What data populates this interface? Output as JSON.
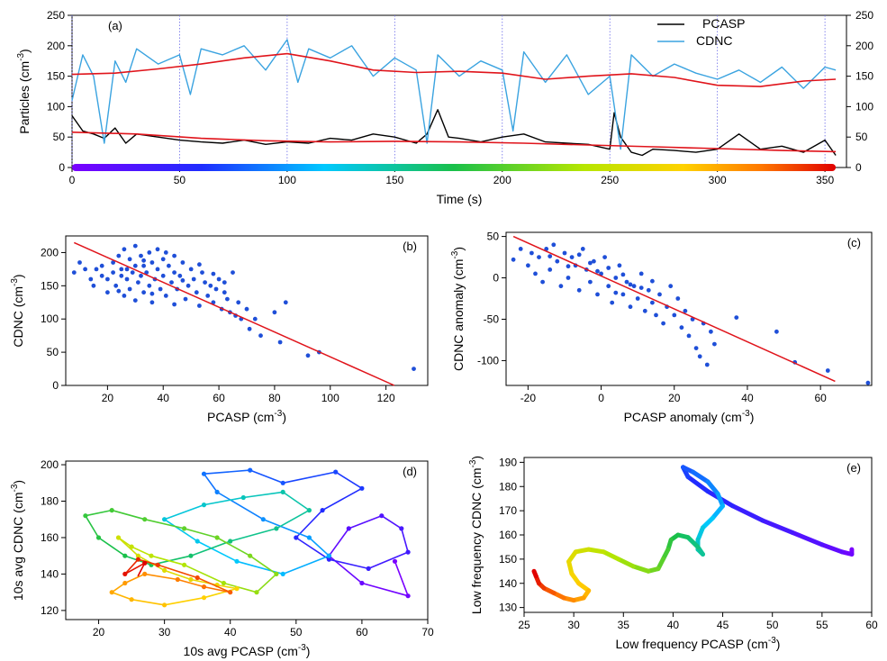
{
  "colors": {
    "pcasp": "#000000",
    "cdnc": "#3aa3e0",
    "smooth": "#e0141b",
    "scatter_points": "#1f4fd8",
    "fit_line": "#e0141b",
    "vline": "#6a6ae8"
  },
  "chart_data": [
    {
      "id": "a",
      "type": "line",
      "tag": "(a)",
      "xlabel": "Time (s)",
      "ylabel": "Particles (cm⁻³)",
      "xlim": [
        0,
        360
      ],
      "ylim": [
        0,
        250
      ],
      "xticks": [
        0,
        50,
        100,
        150,
        200,
        250,
        300,
        350
      ],
      "yticks": [
        0,
        50,
        100,
        150,
        200,
        250
      ],
      "right_axis_ticks": [
        0,
        50,
        100,
        150,
        200,
        250
      ],
      "vertical_gridlines_x": [
        0,
        50,
        100,
        150,
        200,
        250,
        300,
        350
      ],
      "color_bar": "rainbow time bar from violet at 0 s to red at 355 s along y=0",
      "legend": {
        "position": "top-right",
        "entries": [
          "PCASP",
          "CDNC"
        ]
      },
      "series": [
        {
          "name": "PCASP",
          "x": [
            0,
            5,
            10,
            15,
            20,
            25,
            30,
            40,
            50,
            60,
            70,
            80,
            90,
            100,
            110,
            120,
            130,
            140,
            150,
            160,
            165,
            170,
            175,
            180,
            190,
            200,
            210,
            220,
            230,
            240,
            250,
            252,
            255,
            260,
            265,
            270,
            280,
            290,
            300,
            310,
            320,
            330,
            340,
            350,
            355
          ],
          "values": [
            85,
            60,
            55,
            48,
            65,
            40,
            55,
            50,
            45,
            42,
            40,
            45,
            38,
            42,
            40,
            48,
            45,
            55,
            50,
            40,
            55,
            95,
            50,
            48,
            42,
            50,
            55,
            42,
            40,
            38,
            30,
            90,
            50,
            25,
            20,
            30,
            28,
            25,
            30,
            55,
            30,
            35,
            25,
            45,
            20
          ]
        },
        {
          "name": "CDNC",
          "x": [
            0,
            5,
            10,
            15,
            20,
            25,
            30,
            40,
            50,
            55,
            60,
            70,
            80,
            90,
            100,
            105,
            110,
            120,
            130,
            140,
            150,
            160,
            165,
            170,
            180,
            190,
            200,
            205,
            210,
            220,
            230,
            240,
            250,
            255,
            260,
            270,
            280,
            290,
            300,
            310,
            320,
            330,
            340,
            350,
            355
          ],
          "values": [
            110,
            185,
            150,
            40,
            175,
            140,
            195,
            170,
            185,
            120,
            195,
            185,
            200,
            160,
            210,
            140,
            195,
            180,
            200,
            150,
            180,
            160,
            40,
            185,
            150,
            175,
            160,
            60,
            190,
            140,
            185,
            120,
            150,
            30,
            185,
            150,
            170,
            155,
            145,
            160,
            140,
            165,
            130,
            165,
            160
          ]
        },
        {
          "name": "PCASP low frequency",
          "x": [
            0,
            30,
            60,
            90,
            120,
            150,
            180,
            210,
            240,
            270,
            300,
            330,
            355
          ],
          "values": [
            58,
            55,
            48,
            44,
            42,
            43,
            42,
            40,
            37,
            34,
            31,
            28,
            26
          ]
        },
        {
          "name": "CDNC low frequency",
          "x": [
            0,
            20,
            40,
            60,
            80,
            100,
            120,
            140,
            160,
            180,
            200,
            220,
            240,
            260,
            280,
            300,
            320,
            340,
            355
          ],
          "values": [
            153,
            155,
            162,
            170,
            180,
            187,
            175,
            160,
            156,
            158,
            155,
            145,
            150,
            154,
            148,
            135,
            133,
            142,
            145
          ]
        }
      ]
    },
    {
      "id": "b",
      "type": "scatter",
      "tag": "(b)",
      "xlabel": "PCASP (cm⁻³)",
      "ylabel": "CDNC (cm⁻³)",
      "xlim": [
        5,
        135
      ],
      "ylim": [
        0,
        225
      ],
      "xticks": [
        20,
        40,
        60,
        80,
        100,
        120
      ],
      "yticks": [
        0,
        50,
        100,
        150,
        200
      ],
      "fit_line": {
        "x": [
          8,
          123
        ],
        "y": [
          215,
          0
        ]
      },
      "points": [
        [
          8,
          170
        ],
        [
          10,
          185
        ],
        [
          12,
          175
        ],
        [
          14,
          160
        ],
        [
          15,
          150
        ],
        [
          16,
          175
        ],
        [
          18,
          165
        ],
        [
          18,
          180
        ],
        [
          20,
          160
        ],
        [
          20,
          140
        ],
        [
          22,
          170
        ],
        [
          22,
          185
        ],
        [
          23,
          150
        ],
        [
          24,
          195
        ],
        [
          25,
          165
        ],
        [
          25,
          175
        ],
        [
          26,
          135
        ],
        [
          26,
          205
        ],
        [
          27,
          160
        ],
        [
          28,
          190
        ],
        [
          28,
          145
        ],
        [
          29,
          170
        ],
        [
          30,
          180
        ],
        [
          30,
          210
        ],
        [
          31,
          155
        ],
        [
          32,
          165
        ],
        [
          32,
          195
        ],
        [
          33,
          140
        ],
        [
          33,
          180
        ],
        [
          34,
          170
        ],
        [
          35,
          200
        ],
        [
          35,
          150
        ],
        [
          36,
          185
        ],
        [
          36,
          125
        ],
        [
          37,
          160
        ],
        [
          38,
          175
        ],
        [
          38,
          205
        ],
        [
          39,
          145
        ],
        [
          40,
          190
        ],
        [
          40,
          165
        ],
        [
          41,
          135
        ],
        [
          42,
          180
        ],
        [
          43,
          155
        ],
        [
          44,
          170
        ],
        [
          44,
          195
        ],
        [
          45,
          145
        ],
        [
          46,
          165
        ],
        [
          47,
          185
        ],
        [
          48,
          130
        ],
        [
          49,
          150
        ],
        [
          50,
          175
        ],
        [
          51,
          160
        ],
        [
          52,
          140
        ],
        [
          53,
          120
        ],
        [
          54,
          170
        ],
        [
          55,
          155
        ],
        [
          56,
          135
        ],
        [
          57,
          150
        ],
        [
          58,
          125
        ],
        [
          59,
          145
        ],
        [
          60,
          160
        ],
        [
          61,
          115
        ],
        [
          62,
          140
        ],
        [
          63,
          130
        ],
        [
          64,
          110
        ],
        [
          65,
          170
        ],
        [
          66,
          105
        ],
        [
          67,
          125
        ],
        [
          68,
          100
        ],
        [
          70,
          115
        ],
        [
          71,
          85
        ],
        [
          73,
          100
        ],
        [
          75,
          75
        ],
        [
          80,
          110
        ],
        [
          82,
          65
        ],
        [
          84,
          125
        ],
        [
          92,
          45
        ],
        [
          96,
          50
        ],
        [
          130,
          25
        ],
        [
          27,
          175
        ],
        [
          33,
          188
        ],
        [
          41,
          200
        ],
        [
          47,
          158
        ],
        [
          53,
          182
        ],
        [
          24,
          142
        ],
        [
          58,
          168
        ],
        [
          36,
          138
        ],
        [
          44,
          122
        ],
        [
          62,
          155
        ],
        [
          30,
          128
        ]
      ]
    },
    {
      "id": "c",
      "type": "scatter",
      "tag": "(c)",
      "xlabel": "PCASP anomaly (cm⁻³)",
      "ylabel": "CDNC anomaly (cm⁻³)",
      "xlim": [
        -26,
        74
      ],
      "ylim": [
        -130,
        55
      ],
      "xticks": [
        -20,
        0,
        20,
        40,
        60
      ],
      "yticks": [
        -100,
        -50,
        0,
        50
      ],
      "fit_line": {
        "x": [
          -24,
          64
        ],
        "y": [
          50,
          -125
        ]
      },
      "points": [
        [
          -24,
          22
        ],
        [
          -22,
          35
        ],
        [
          -20,
          15
        ],
        [
          -19,
          30
        ],
        [
          -18,
          5
        ],
        [
          -17,
          25
        ],
        [
          -16,
          -5
        ],
        [
          -15,
          35
        ],
        [
          -14,
          10
        ],
        [
          -13,
          40
        ],
        [
          -12,
          20
        ],
        [
          -11,
          -10
        ],
        [
          -10,
          30
        ],
        [
          -9,
          0
        ],
        [
          -8,
          25
        ],
        [
          -7,
          15
        ],
        [
          -6,
          -15
        ],
        [
          -5,
          35
        ],
        [
          -4,
          10
        ],
        [
          -3,
          -5
        ],
        [
          -2,
          20
        ],
        [
          -1,
          -20
        ],
        [
          0,
          5
        ],
        [
          1,
          25
        ],
        [
          2,
          -10
        ],
        [
          3,
          -30
        ],
        [
          4,
          0
        ],
        [
          5,
          15
        ],
        [
          6,
          -20
        ],
        [
          7,
          -5
        ],
        [
          8,
          -35
        ],
        [
          9,
          -10
        ],
        [
          10,
          -25
        ],
        [
          11,
          5
        ],
        [
          12,
          -40
        ],
        [
          13,
          -15
        ],
        [
          14,
          -30
        ],
        [
          15,
          -45
        ],
        [
          16,
          -20
        ],
        [
          17,
          -55
        ],
        [
          18,
          -35
        ],
        [
          19,
          -10
        ],
        [
          20,
          -45
        ],
        [
          21,
          -25
        ],
        [
          22,
          -60
        ],
        [
          23,
          -40
        ],
        [
          24,
          -70
        ],
        [
          25,
          -50
        ],
        [
          26,
          -85
        ],
        [
          27,
          -95
        ],
        [
          28,
          -55
        ],
        [
          29,
          -105
        ],
        [
          30,
          -65
        ],
        [
          31,
          -80
        ],
        [
          37,
          -48
        ],
        [
          48,
          -65
        ],
        [
          53,
          -102
        ],
        [
          62,
          -112
        ],
        [
          73,
          -127
        ],
        [
          -6,
          28
        ],
        [
          -3,
          18
        ],
        [
          2,
          12
        ],
        [
          6,
          4
        ],
        [
          -9,
          14
        ],
        [
          -14,
          26
        ],
        [
          11,
          -12
        ],
        [
          4,
          -18
        ],
        [
          -1,
          8
        ],
        [
          8,
          -8
        ],
        [
          14,
          -4
        ]
      ]
    },
    {
      "id": "d",
      "type": "line",
      "tag": "(d)",
      "xlabel": "10s avg PCASP (cm⁻³)",
      "ylabel": "10s avg CDNC (cm⁻³)",
      "xlim": [
        15,
        70
      ],
      "ylim": [
        115,
        202
      ],
      "xticks": [
        20,
        30,
        40,
        50,
        60,
        70
      ],
      "yticks": [
        120,
        140,
        160,
        180,
        200
      ],
      "coloring": "rainbow along time, violet (start) to red (end)",
      "trajectory": {
        "x": [
          65,
          67,
          60,
          55,
          58,
          63,
          66,
          67,
          61,
          55,
          50,
          54,
          60,
          56,
          48,
          43,
          36,
          38,
          45,
          52,
          55,
          48,
          41,
          35,
          30,
          36,
          42,
          48,
          52,
          47,
          40,
          34,
          28,
          24,
          20,
          18,
          22,
          27,
          33,
          38,
          43,
          47,
          44,
          39,
          33,
          28,
          25,
          23,
          26,
          30,
          34,
          38,
          41,
          36,
          30,
          25,
          22,
          24,
          27,
          32,
          36,
          40,
          35,
          29,
          26,
          24,
          27,
          26
        ],
        "y": [
          147,
          128,
          135,
          150,
          165,
          172,
          165,
          152,
          143,
          148,
          160,
          175,
          187,
          196,
          190,
          197,
          195,
          185,
          170,
          160,
          150,
          140,
          147,
          158,
          170,
          178,
          182,
          185,
          175,
          165,
          158,
          150,
          145,
          150,
          160,
          172,
          175,
          170,
          165,
          160,
          150,
          140,
          130,
          135,
          145,
          150,
          155,
          160,
          150,
          142,
          137,
          134,
          132,
          127,
          123,
          126,
          130,
          135,
          140,
          137,
          133,
          130,
          138,
          145,
          148,
          140,
          146,
          139
        ]
      }
    },
    {
      "id": "e",
      "type": "line",
      "tag": "(e)",
      "xlabel": "Low frequency PCASP (cm⁻³)",
      "ylabel": "Low frequency CDNC (cm⁻³)",
      "xlim": [
        25,
        60
      ],
      "ylim": [
        128,
        192
      ],
      "xticks": [
        25,
        30,
        35,
        40,
        45,
        50,
        55,
        60
      ],
      "yticks": [
        130,
        140,
        150,
        160,
        170,
        180,
        190
      ],
      "coloring": "rainbow along time, violet (start) to red (end)",
      "trajectory": {
        "x": [
          58,
          58,
          57,
          55,
          52,
          49,
          46,
          43.5,
          41.5,
          41,
          42,
          43.5,
          44.5,
          45,
          44,
          43,
          42.5,
          42.5,
          43,
          42.5,
          41.5,
          40.5,
          39.8,
          39.5,
          39,
          38.5,
          37.5,
          36,
          34.5,
          33,
          31.5,
          30.2,
          29.5,
          29.8,
          30.5,
          31.5,
          31,
          30,
          29,
          28,
          27,
          26.5,
          26.2,
          26
        ],
        "y": [
          154,
          152,
          153,
          156,
          161,
          166,
          172,
          178,
          184,
          188,
          186,
          182,
          177,
          172,
          167,
          163,
          158,
          154,
          152,
          155,
          159,
          160,
          158,
          154,
          150,
          146,
          145,
          147,
          150,
          153,
          154,
          153,
          149,
          144,
          140,
          137,
          134,
          133,
          134,
          136,
          138,
          140,
          143,
          145
        ]
      }
    }
  ]
}
